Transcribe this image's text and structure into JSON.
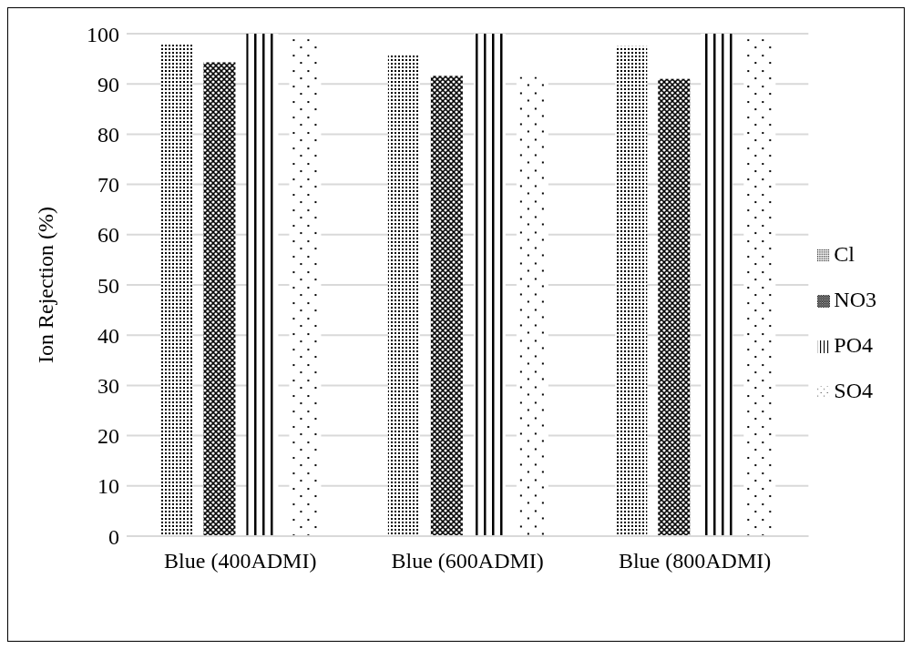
{
  "chart_data": {
    "type": "bar",
    "ylabel": "Ion Rejection (%)",
    "categories": [
      "Blue (400ADMI)",
      "Blue (600ADMI)",
      "Blue (800ADMI)"
    ],
    "series": [
      {
        "name": "Cl",
        "color": "#000000",
        "values": [
          97.8,
          95.7,
          97.5
        ]
      },
      {
        "name": "NO3",
        "color": "#000000",
        "values": [
          94.3,
          91.6,
          91.0
        ]
      },
      {
        "name": "PO4",
        "color": "#000000",
        "values": [
          100,
          100,
          100
        ]
      },
      {
        "name": "SO4",
        "color": "#000000",
        "values": [
          98.9,
          91.4,
          98.9
        ]
      }
    ],
    "ylim": [
      0,
      100
    ],
    "yticks": [
      0,
      10,
      20,
      30,
      40,
      50,
      60,
      70,
      80,
      90,
      100
    ],
    "grid": "y",
    "legend": "right"
  }
}
